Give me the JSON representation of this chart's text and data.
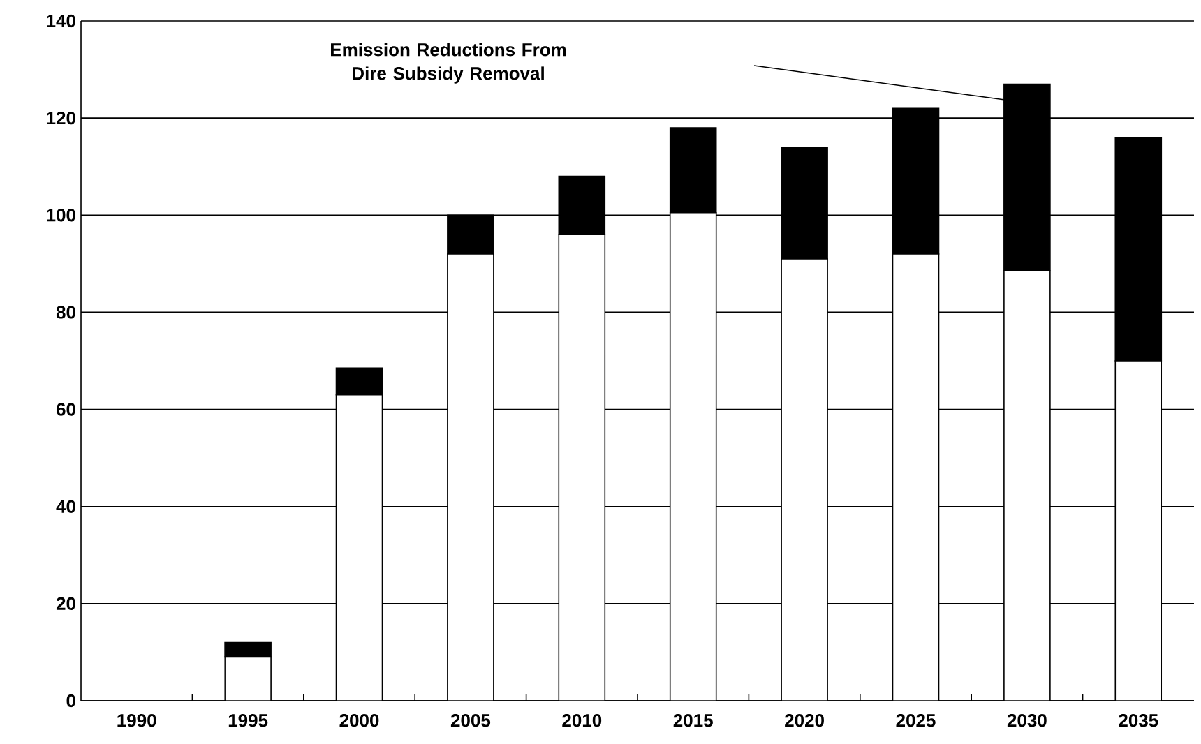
{
  "chart_data": {
    "type": "bar",
    "stacked": true,
    "categories": [
      "1990",
      "1995",
      "2000",
      "2005",
      "2010",
      "2015",
      "2020",
      "2025",
      "2030",
      "2035"
    ],
    "series": [
      {
        "color": "#ffffff",
        "values": [
          0,
          9,
          63,
          92,
          96,
          100.5,
          91,
          92,
          88.5,
          70
        ]
      },
      {
        "color": "#000000",
        "values": [
          0,
          3,
          5.5,
          8,
          12,
          17.5,
          23,
          30,
          38.5,
          46
        ]
      }
    ],
    "ylim": [
      0,
      140
    ],
    "yticks": [
      0,
      20,
      40,
      60,
      80,
      100,
      120,
      140
    ],
    "grid": "y",
    "annotations": [
      "Emission Reductions From Dire Subsidy Removal"
    ]
  }
}
